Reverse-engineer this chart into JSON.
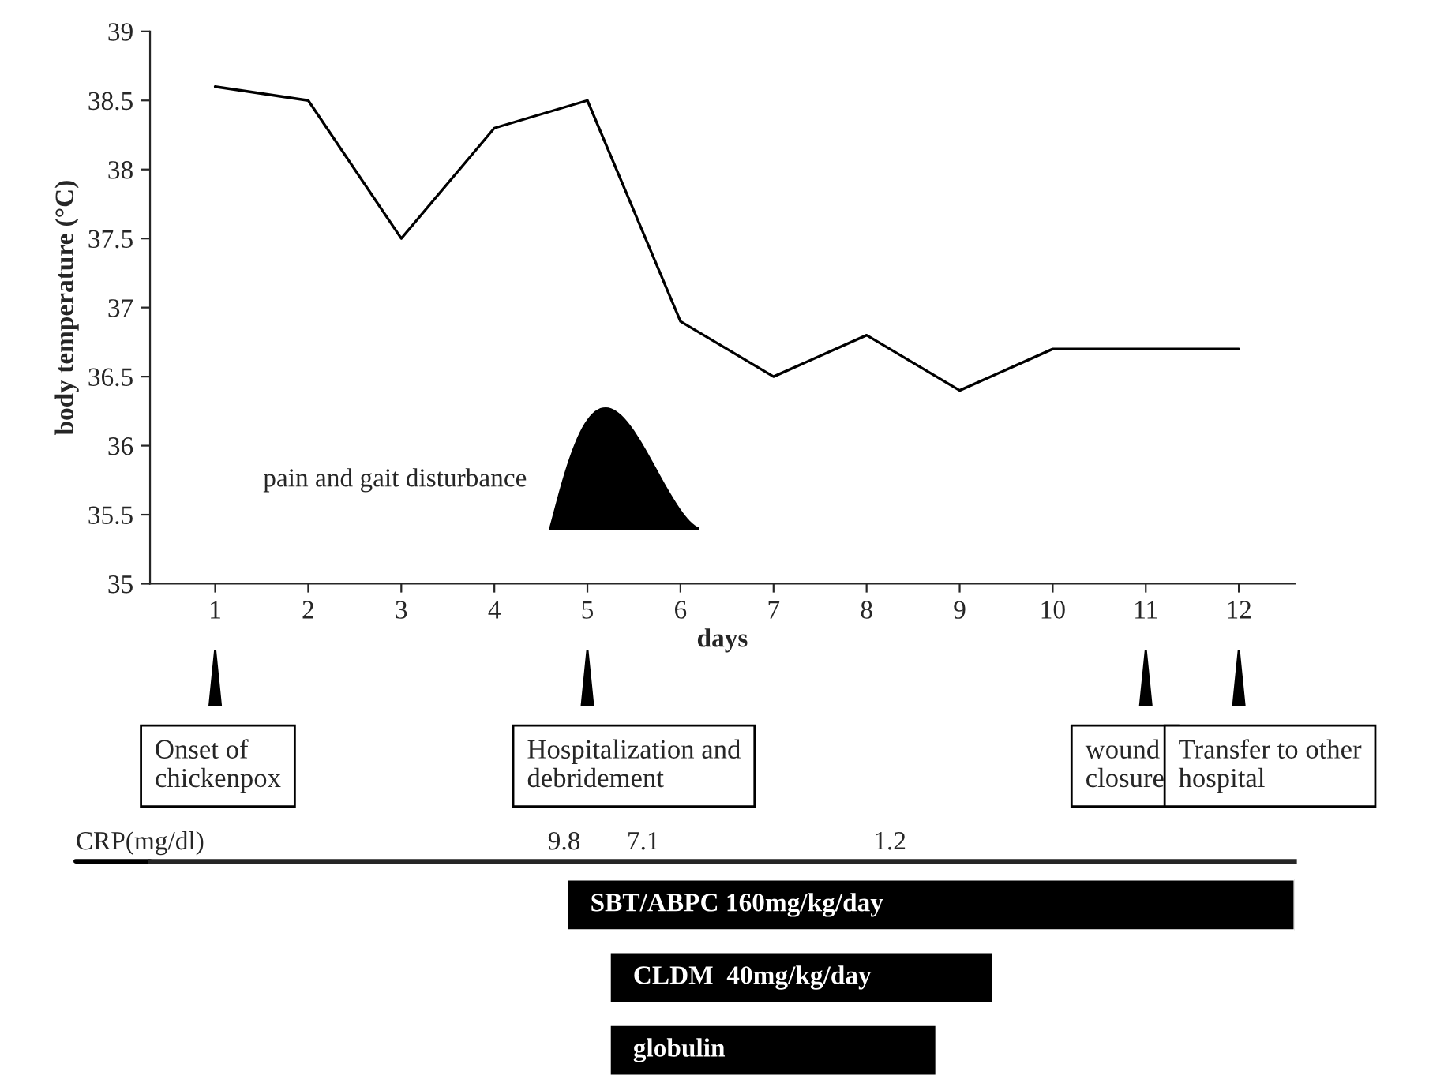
{
  "chart_data": [
    {
      "type": "line",
      "xlabel": "days",
      "ylabel": "body temperature (°C)",
      "x": [
        1,
        2,
        3,
        4,
        5,
        6,
        7,
        8,
        9,
        10,
        11,
        12
      ],
      "series": [
        {
          "color": "#000000",
          "values": [
            38.6,
            38.5,
            37.5,
            38.3,
            38.5,
            36.9,
            36.5,
            36.8,
            36.4,
            36.7,
            36.7,
            36.7
          ]
        }
      ],
      "xlim": [
        0.3,
        12.6
      ],
      "xticks": [
        1,
        2,
        3,
        4,
        5,
        6,
        7,
        8,
        9,
        10,
        11,
        12
      ],
      "ylim": [
        35,
        39
      ],
      "yticks": [
        35,
        35.5,
        36,
        36.5,
        37,
        37.5,
        38,
        38.5,
        39
      ],
      "grid": false,
      "marker": "none",
      "line_style": "solid",
      "annotations": [
        "pain and gait disturbance",
        "Onset of\nchickenpox",
        "Hospitalization and\ndebridement",
        "wound\nclosure",
        "Transfer to other\nhospital"
      ]
    },
    {
      "type": "bar",
      "orientation": "horizontal",
      "categories": [
        "SBT/ABPC 160mg/kg/day",
        "CLDM  40mg/kg/day",
        "globulin"
      ],
      "base": [
        4.78,
        5.24,
        5.24
      ],
      "values": [
        7.82,
        4.12,
        3.51
      ],
      "color": "#000000",
      "xlim": [
        0.3,
        12.6
      ],
      "tick_labels": false,
      "annotations": [
        "CRP(mg/dl)",
        "9.8",
        "7.1",
        "1.2"
      ]
    }
  ]
}
